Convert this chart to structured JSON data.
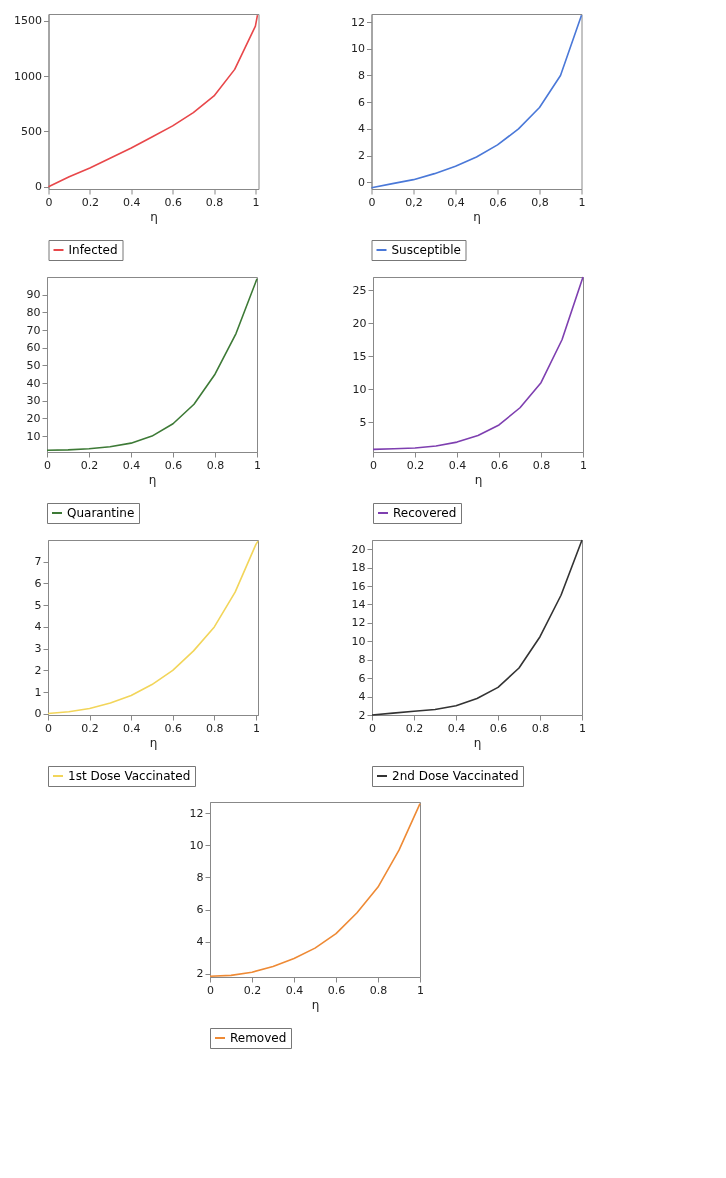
{
  "chart_data": [
    {
      "type": "line",
      "xlabel": "η",
      "x": [
        0,
        0.1,
        0.2,
        0.3,
        0.4,
        0.5,
        0.6,
        0.7,
        0.8,
        0.9,
        1.0,
        1.01
      ],
      "xlim": [
        0,
        1.015
      ],
      "xticks": [
        0,
        0.2,
        0.4,
        0.6,
        0.8,
        1
      ],
      "ylim": [
        -20,
        1560
      ],
      "yticks": [
        0,
        500,
        1000,
        1500
      ],
      "legend": "bottom",
      "series": [
        {
          "name": "Infected",
          "color": "#e8474a",
          "values": [
            0,
            90,
            170,
            260,
            350,
            450,
            550,
            670,
            820,
            1060,
            1450,
            1550
          ]
        }
      ]
    },
    {
      "type": "line",
      "xlabel": "η",
      "x": [
        0,
        0.1,
        0.2,
        0.3,
        0.4,
        0.5,
        0.6,
        0.7,
        0.8,
        0.9,
        1.0
      ],
      "xlim": [
        0,
        1
      ],
      "xticks": [
        0,
        {
          "value": 0.2,
          "label": "0,2"
        },
        {
          "value": 0.4,
          "label": "0,4"
        },
        {
          "value": 0.6,
          "label": "0,6"
        },
        {
          "value": 0.8,
          "label": "0,8"
        },
        1
      ],
      "ylim": [
        -0.5,
        12.6
      ],
      "yticks": [
        0,
        2,
        4,
        6,
        8,
        10,
        12
      ],
      "legend": "bottom",
      "series": [
        {
          "name": "Susceptible",
          "color": "#4a78d8",
          "values": [
            -0.4,
            -0.1,
            0.2,
            0.65,
            1.2,
            1.9,
            2.8,
            4.0,
            5.6,
            8.0,
            12.5
          ]
        }
      ]
    },
    {
      "type": "line",
      "xlabel": "η",
      "x": [
        0,
        0.1,
        0.2,
        0.3,
        0.4,
        0.5,
        0.6,
        0.7,
        0.8,
        0.9,
        1.0
      ],
      "xlim": [
        0,
        1
      ],
      "xticks": [
        0,
        0.2,
        0.4,
        0.6,
        0.8,
        1
      ],
      "ylim": [
        1,
        100
      ],
      "yticks": [
        10,
        20,
        30,
        40,
        50,
        60,
        70,
        80,
        90
      ],
      "legend": "bottom",
      "series": [
        {
          "name": "Quarantine",
          "color": "#3d7a36",
          "values": [
            2,
            2.2,
            2.8,
            4,
            6,
            10,
            17,
            28,
            45,
            68,
            99
          ]
        }
      ]
    },
    {
      "type": "line",
      "xlabel": "η",
      "x": [
        0,
        0.1,
        0.2,
        0.3,
        0.4,
        0.5,
        0.6,
        0.7,
        0.8,
        0.9,
        1.0
      ],
      "xlim": [
        0,
        1
      ],
      "xticks": [
        0,
        0.2,
        0.4,
        0.6,
        0.8,
        1
      ],
      "ylim": [
        0.5,
        27
      ],
      "yticks": [
        5,
        10,
        15,
        20,
        25
      ],
      "legend": "bottom",
      "series": [
        {
          "name": "Recovered",
          "color": "#7e3fb0",
          "values": [
            0.9,
            1.0,
            1.1,
            1.4,
            2.0,
            3.0,
            4.6,
            7.2,
            11,
            17.5,
            27
          ]
        }
      ]
    },
    {
      "type": "line",
      "xlabel": "η",
      "x": [
        0,
        0.1,
        0.2,
        0.3,
        0.4,
        0.5,
        0.6,
        0.7,
        0.8,
        0.9,
        1.0,
        1.01
      ],
      "xlim": [
        0,
        1.01
      ],
      "xticks": [
        0,
        0.2,
        0.4,
        0.6,
        0.8,
        1
      ],
      "ylim": [
        -0.05,
        8
      ],
      "yticks": [
        0,
        1,
        2,
        3,
        4,
        5,
        6,
        7
      ],
      "legend": "bottom",
      "series": [
        {
          "name": "1st Dose Vaccinated",
          "color": "#f2d55a",
          "values": [
            0.02,
            0.1,
            0.25,
            0.5,
            0.85,
            1.35,
            2.0,
            2.9,
            4.0,
            5.6,
            7.8,
            7.95
          ]
        }
      ]
    },
    {
      "type": "line",
      "xlabel": "η",
      "x": [
        0,
        0.1,
        0.2,
        0.3,
        0.4,
        0.5,
        0.6,
        0.7,
        0.8,
        0.9,
        1.0
      ],
      "xlim": [
        0,
        1
      ],
      "xticks": [
        0,
        0.2,
        0.4,
        0.6,
        0.8,
        1
      ],
      "ylim": [
        2,
        21
      ],
      "yticks": [
        2,
        4,
        6,
        8,
        10,
        12,
        14,
        16,
        18,
        20
      ],
      "legend": "bottom",
      "series": [
        {
          "name": "2nd Dose Vaccinated",
          "color": "#333333",
          "values": [
            2.0,
            2.2,
            2.4,
            2.6,
            3.0,
            3.8,
            5.0,
            7.1,
            10.5,
            15,
            21
          ]
        }
      ]
    },
    {
      "type": "line",
      "xlabel": "η",
      "x": [
        0,
        0.1,
        0.2,
        0.3,
        0.4,
        0.5,
        0.6,
        0.7,
        0.8,
        0.9,
        1.0
      ],
      "xlim": [
        0,
        1
      ],
      "xticks": [
        0,
        0.2,
        0.4,
        0.6,
        0.8,
        1
      ],
      "ylim": [
        1.8,
        12.7
      ],
      "yticks": [
        2,
        4,
        6,
        8,
        10,
        12
      ],
      "legend": "bottom",
      "series": [
        {
          "name": "Removed",
          "color": "#ee8a35",
          "values": [
            1.85,
            1.9,
            2.1,
            2.45,
            2.95,
            3.6,
            4.5,
            5.8,
            7.4,
            9.7,
            12.6
          ]
        }
      ]
    }
  ]
}
